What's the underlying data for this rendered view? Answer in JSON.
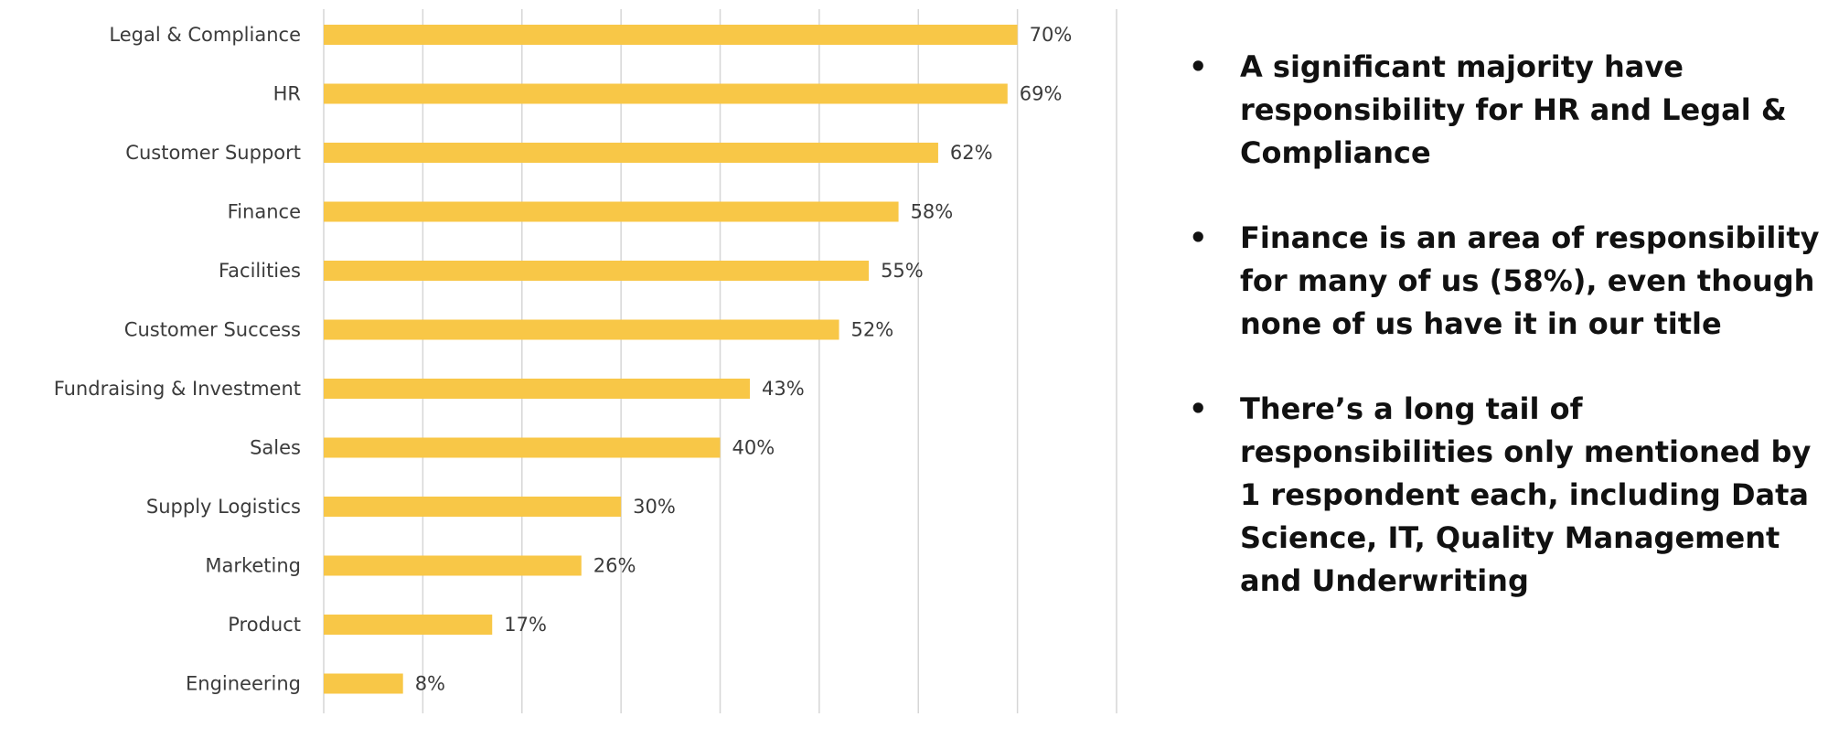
{
  "chart_data": {
    "type": "bar",
    "orientation": "horizontal",
    "categories": [
      "Legal & Compliance",
      "HR",
      "Customer Support",
      "Finance",
      "Facilities",
      "Customer Success",
      "Fundraising & Investment",
      "Sales",
      "Supply Logistics",
      "Marketing",
      "Product",
      "Engineering"
    ],
    "values": [
      70,
      69,
      62,
      58,
      55,
      52,
      43,
      40,
      30,
      26,
      17,
      8
    ],
    "value_labels": [
      "70%",
      "69%",
      "62%",
      "58%",
      "55%",
      "52%",
      "43%",
      "40%",
      "30%",
      "26%",
      "17%",
      "8%"
    ],
    "xlim": [
      0,
      80
    ],
    "grid": true,
    "legend": "none",
    "bar_color": "#f8c747"
  },
  "notes": [
    "A significant majority have responsibility for HR and Legal & Compliance",
    "Finance is an area of responsibility for many of us (58%), even though none of us have it in our title",
    "There’s a long tail of responsibilities only mentioned by 1 respondent each, including Data Science, IT, Quality Management and Underwriting"
  ],
  "bullet_char": "•"
}
